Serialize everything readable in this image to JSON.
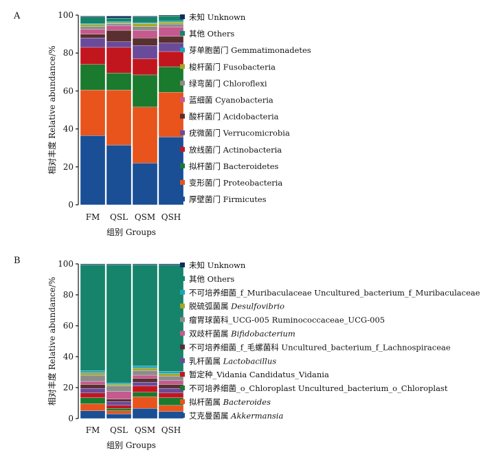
{
  "chart_data": [
    {
      "panel_label": "A",
      "type": "bar",
      "stacked": true,
      "ylabel": "相对丰度 Relative abundance/%",
      "xlabel": "组别 Groups",
      "ylim": [
        0,
        100
      ],
      "yticks": [
        0,
        20,
        40,
        60,
        80,
        100
      ],
      "grid": false,
      "legend_position": "right",
      "categories": [
        "FM",
        "QSL",
        "QSM",
        "QSH"
      ],
      "series": [
        {
          "name": "厚壁菌门",
          "name_en": "Firmicutes",
          "color": "#1a4f96",
          "values": [
            36.5,
            31.5,
            22,
            35.8
          ]
        },
        {
          "name": "变形菌门",
          "name_en": "Proteobacteria",
          "color": "#e8541b",
          "values": [
            24,
            29,
            29.5,
            23.5
          ]
        },
        {
          "name": "拟杆菌门",
          "name_en": "Bacteroidetes",
          "color": "#1a7a2e",
          "values": [
            13.5,
            9,
            17,
            13.5
          ]
        },
        {
          "name": "放线菌门",
          "name_en": "Actinobacteria",
          "color": "#c2161f",
          "values": [
            9,
            13.5,
            8.5,
            8
          ]
        },
        {
          "name": "疣微菌门",
          "name_en": "Verrucomicrobia",
          "color": "#6a4a9a",
          "values": [
            5,
            3,
            7,
            4.5
          ]
        },
        {
          "name": "酸杆菌门",
          "name_en": "Acidobacteria",
          "color": "#5a2f2f",
          "values": [
            2,
            6,
            4,
            3.5
          ]
        },
        {
          "name": "蓝细菌",
          "name_en": "Cyanobacteria",
          "color": "#c45a8e",
          "values": [
            2.5,
            2.5,
            4,
            5
          ]
        },
        {
          "name": "绿弯菌门",
          "name_en": "Chloroflexi",
          "color": "#8c8c8c",
          "values": [
            1.5,
            1,
            2,
            1.5
          ]
        },
        {
          "name": "梭杆菌门",
          "name_en": "Fusobacteria",
          "color": "#a8a52a",
          "values": [
            1,
            0.5,
            1.5,
            1
          ]
        },
        {
          "name": "芽单胞菌门",
          "name_en": "Gemmatimonadetes",
          "color": "#1fa4b8",
          "values": [
            0.5,
            0.5,
            0.5,
            0.5
          ]
        },
        {
          "name": "其他",
          "name_en": "Others",
          "color": "#16846a",
          "values": [
            3.5,
            2,
            3,
            2.7
          ]
        },
        {
          "name": "未知",
          "name_en": "Unknown",
          "color": "#0f2f60",
          "values": [
            0.5,
            1,
            0.5,
            0.5
          ]
        }
      ]
    },
    {
      "panel_label": "B",
      "type": "bar",
      "stacked": true,
      "ylabel": "相对丰度 Relative abundance/%",
      "xlabel": "组别 Groups",
      "ylim": [
        0,
        100
      ],
      "yticks": [
        0,
        20,
        40,
        60,
        80,
        100
      ],
      "grid": false,
      "legend_position": "right",
      "categories": [
        "FM",
        "QSL",
        "QSM",
        "QSH"
      ],
      "series": [
        {
          "name": "艾克曼菌属",
          "name_en": "Akkermansia",
          "name_en_italic": true,
          "color": "#1a4f96",
          "values": [
            5,
            3,
            6.5,
            4.5
          ]
        },
        {
          "name": "拟杆菌属",
          "name_en": "Bacteroides",
          "name_en_italic": true,
          "color": "#e8541b",
          "values": [
            4.5,
            2,
            7.5,
            4
          ]
        },
        {
          "name": "不可培养细菌_o_Chloroplast",
          "name_en": "Uncultured_bacterium_o_Chloroplast",
          "name_en_italic": false,
          "color": "#1a7a2e",
          "values": [
            4,
            1.5,
            3,
            5
          ]
        },
        {
          "name": "暂定种_Vidania",
          "name_en": "Candidatus_Vidania",
          "name_en_italic": false,
          "color": "#c2161f",
          "values": [
            3,
            2,
            4,
            3
          ]
        },
        {
          "name": "乳杆菌属",
          "name_en": "Lactobacillus",
          "name_en_italic": true,
          "color": "#6a4a9a",
          "values": [
            3,
            2.5,
            2.5,
            3
          ]
        },
        {
          "name": "不可培养细菌_f_毛螺菌科",
          "name_en": "Uncultured_bacterium_f_Lachnospiraceae",
          "name_en_italic": false,
          "color": "#5a2f2f",
          "values": [
            2.5,
            1.5,
            2.5,
            2.5
          ]
        },
        {
          "name": "双歧杆菌属",
          "name_en": "Bifidobacterium",
          "name_en_italic": true,
          "color": "#c45a8e",
          "values": [
            2,
            5,
            2,
            2.5
          ]
        },
        {
          "name": "瘤胃球菌科_UCG-005",
          "name_en": "Ruminococcaceae_UCG-005",
          "name_en_italic": false,
          "color": "#8c8c8c",
          "values": [
            4,
            3.5,
            3,
            3
          ]
        },
        {
          "name": "脱硫弧菌属",
          "name_en": "Desulfovibrio",
          "name_en_italic": true,
          "color": "#a8a52a",
          "values": [
            1.5,
            1,
            1.5,
            1.5
          ]
        },
        {
          "name": "不可培养细菌_f_Muribaculaceae",
          "name_en": "Uncultured_bacterium_f_Muribaculaceae",
          "name_en_italic": false,
          "color": "#1fa4b8",
          "values": [
            1.5,
            1,
            1.5,
            1.5
          ]
        },
        {
          "name": "其他",
          "name_en": "Others",
          "name_en_italic": false,
          "color": "#16846a",
          "values": [
            68.5,
            76.5,
            65.5,
            68.8
          ]
        },
        {
          "name": "未知",
          "name_en": "Unknown",
          "name_en_italic": false,
          "color": "#0f2f60",
          "values": [
            0.5,
            0.5,
            0.5,
            0.7
          ]
        }
      ]
    }
  ]
}
